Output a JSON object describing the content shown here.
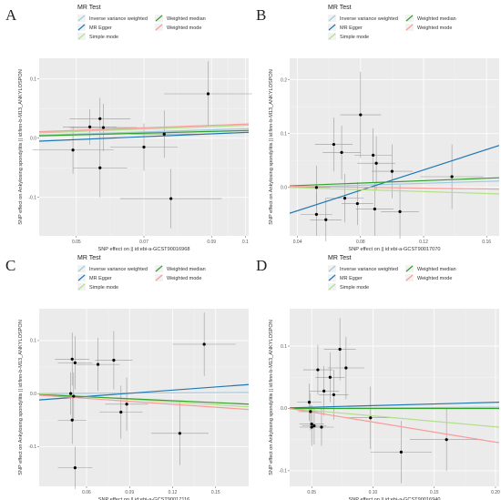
{
  "legend": {
    "title": "MR Test",
    "methods": [
      {
        "label": "Inverse variance weighted",
        "color": "#9ecae1"
      },
      {
        "label": "MR Egger",
        "color": "#1f78b4"
      },
      {
        "label": "Simple mode",
        "color": "#b2df8a"
      },
      {
        "label": "Weighted median",
        "color": "#33a02c"
      },
      {
        "label": "Weighted mode",
        "color": "#fb9a99"
      }
    ]
  },
  "chart_data": [
    {
      "type": "scatter",
      "panel": "A",
      "xlabel": "SNP effect on  || id:ebi-a-GCST90016968",
      "ylabel": "SNP effect on Ankylosing spondylitis || id:finn-b-M13_ANKYLOSPON",
      "xlim": [
        0.039,
        0.101
      ],
      "ylim": [
        -0.165,
        0.135
      ],
      "xticks": [
        0.05,
        0.07,
        0.09,
        0.1
      ],
      "xtick_labels": [
        "0.05",
        "0.07",
        "0.09",
        "0.1"
      ],
      "yticks": [
        -0.1,
        0.0,
        0.1
      ],
      "ytick_labels": [
        "-0.1",
        "0.0",
        "0.1"
      ],
      "points": [
        {
          "x": 0.049,
          "y": -0.02,
          "xerr": 0.012,
          "yerr": 0.04
        },
        {
          "x": 0.054,
          "y": 0.019,
          "xerr": 0.008,
          "yerr": 0.03
        },
        {
          "x": 0.057,
          "y": 0.033,
          "xerr": 0.009,
          "yerr": 0.035
        },
        {
          "x": 0.058,
          "y": 0.018,
          "xerr": 0.01,
          "yerr": 0.04
        },
        {
          "x": 0.057,
          "y": -0.05,
          "xerr": 0.008,
          "yerr": 0.05
        },
        {
          "x": 0.07,
          "y": -0.015,
          "xerr": 0.01,
          "yerr": 0.04
        },
        {
          "x": 0.076,
          "y": 0.007,
          "xerr": 0.01,
          "yerr": 0.04
        },
        {
          "x": 0.078,
          "y": -0.102,
          "xerr": 0.015,
          "yerr": 0.05
        },
        {
          "x": 0.089,
          "y": 0.075,
          "xerr": 0.013,
          "yerr": 0.055
        }
      ],
      "lines": [
        {
          "method": "Inverse variance weighted",
          "y0": 0.005,
          "y1": 0.016
        },
        {
          "method": "MR Egger",
          "y0": -0.005,
          "y1": 0.01
        },
        {
          "method": "Simple mode",
          "y0": 0.009,
          "y1": 0.022
        },
        {
          "method": "Weighted median",
          "y0": 0.004,
          "y1": 0.013
        },
        {
          "method": "Weighted mode",
          "y0": 0.011,
          "y1": 0.024
        }
      ]
    },
    {
      "type": "scatter",
      "panel": "B",
      "xlabel": "SNP effect on  || id:ebi-a-GCST90017070",
      "ylabel": "SNP effect on Ankylosing spondylitis || id:finn-b-M13_ANKYLOSPON",
      "xlim": [
        0.035,
        0.168
      ],
      "ylim": [
        -0.09,
        0.24
      ],
      "xticks": [
        0.04,
        0.08,
        0.12,
        0.16
      ],
      "xtick_labels": [
        "0.04",
        "0.08",
        "0.12",
        "0.16"
      ],
      "yticks": [
        0.0,
        0.1,
        0.2
      ],
      "ytick_labels": [
        "0.0",
        "0.1",
        "0.2"
      ],
      "points": [
        {
          "x": 0.052,
          "y": 0.0,
          "xerr": 0.009,
          "yerr": 0.04
        },
        {
          "x": 0.052,
          "y": -0.05,
          "xerr": 0.01,
          "yerr": 0.04
        },
        {
          "x": 0.058,
          "y": -0.06,
          "xerr": 0.01,
          "yerr": 0.04
        },
        {
          "x": 0.063,
          "y": 0.08,
          "xerr": 0.012,
          "yerr": 0.05
        },
        {
          "x": 0.068,
          "y": 0.065,
          "xerr": 0.012,
          "yerr": 0.05
        },
        {
          "x": 0.07,
          "y": -0.02,
          "xerr": 0.012,
          "yerr": 0.045
        },
        {
          "x": 0.078,
          "y": -0.03,
          "xerr": 0.01,
          "yerr": 0.04
        },
        {
          "x": 0.08,
          "y": 0.135,
          "xerr": 0.013,
          "yerr": 0.08
        },
        {
          "x": 0.088,
          "y": 0.06,
          "xerr": 0.012,
          "yerr": 0.05
        },
        {
          "x": 0.09,
          "y": 0.045,
          "xerr": 0.012,
          "yerr": 0.05
        },
        {
          "x": 0.089,
          "y": -0.04,
          "xerr": 0.012,
          "yerr": 0.05
        },
        {
          "x": 0.1,
          "y": 0.03,
          "xerr": 0.013,
          "yerr": 0.05
        },
        {
          "x": 0.105,
          "y": -0.045,
          "xerr": 0.012,
          "yerr": 0.05
        },
        {
          "x": 0.138,
          "y": 0.02,
          "xerr": 0.02,
          "yerr": 0.06
        }
      ],
      "lines": [
        {
          "method": "Inverse variance weighted",
          "y0": 0.0,
          "y1": 0.012
        },
        {
          "method": "MR Egger",
          "y0": -0.048,
          "y1": 0.078
        },
        {
          "method": "Simple mode",
          "y0": 0.0,
          "y1": -0.012
        },
        {
          "method": "Weighted median",
          "y0": 0.003,
          "y1": 0.018
        },
        {
          "method": "Weighted mode",
          "y0": 0.002,
          "y1": -0.003
        }
      ]
    },
    {
      "type": "scatter",
      "panel": "C",
      "xlabel": "SNP effect on  || id:ebi-a-GCST90017116",
      "ylabel": "SNP effect on Ankylosing spondylitis || id:finn-b-M13_ANKYLOSPON",
      "xlim": [
        0.027,
        0.173
      ],
      "ylim": [
        -0.175,
        0.16
      ],
      "xticks": [
        0.06,
        0.09,
        0.12,
        0.15
      ],
      "xtick_labels": [
        "0.06",
        "0.09",
        "0.12",
        "0.15"
      ],
      "yticks": [
        -0.1,
        0.0,
        0.1
      ],
      "ytick_labels": [
        "-0.1",
        "0.0",
        "0.1"
      ],
      "points": [
        {
          "x": 0.05,
          "y": 0.065,
          "xerr": 0.012,
          "yerr": 0.05
        },
        {
          "x": 0.052,
          "y": 0.058,
          "xerr": 0.012,
          "yerr": 0.05
        },
        {
          "x": 0.049,
          "y": 0.0,
          "xerr": 0.012,
          "yerr": 0.04
        },
        {
          "x": 0.051,
          "y": -0.005,
          "xerr": 0.012,
          "yerr": 0.045
        },
        {
          "x": 0.05,
          "y": -0.05,
          "xerr": 0.01,
          "yerr": 0.045
        },
        {
          "x": 0.052,
          "y": -0.14,
          "xerr": 0.012,
          "yerr": 0.04
        },
        {
          "x": 0.068,
          "y": 0.055,
          "xerr": 0.015,
          "yerr": 0.05
        },
        {
          "x": 0.079,
          "y": 0.063,
          "xerr": 0.013,
          "yerr": 0.055
        },
        {
          "x": 0.084,
          "y": -0.035,
          "xerr": 0.015,
          "yerr": 0.05
        },
        {
          "x": 0.088,
          "y": -0.02,
          "xerr": 0.015,
          "yerr": 0.05
        },
        {
          "x": 0.125,
          "y": -0.075,
          "xerr": 0.02,
          "yerr": 0.06
        },
        {
          "x": 0.142,
          "y": 0.093,
          "xerr": 0.022,
          "yerr": 0.06
        }
      ],
      "lines": [
        {
          "method": "Inverse variance weighted",
          "y0": 0.0,
          "y1": 0.002
        },
        {
          "method": "MR Egger",
          "y0": -0.012,
          "y1": 0.017
        },
        {
          "method": "Simple mode",
          "y0": 0.0,
          "y1": -0.025
        },
        {
          "method": "Weighted median",
          "y0": -0.002,
          "y1": -0.02
        },
        {
          "method": "Weighted mode",
          "y0": -0.003,
          "y1": -0.03
        }
      ]
    },
    {
      "type": "scatter",
      "panel": "D",
      "xlabel": "SNP effect on  || id:ebi-a-GCST90016940",
      "ylabel": "SNP effect on Ankylosing spondylitis || id:finn-b-M13_ANKYLOSPON",
      "xlim": [
        0.032,
        0.203
      ],
      "ylim": [
        -0.125,
        0.16
      ],
      "xticks": [
        0.05,
        0.1,
        0.15,
        0.2
      ],
      "xtick_labels": [
        "0.05",
        "0.10",
        "0.15",
        "0.20"
      ],
      "yticks": [
        -0.1,
        0.0,
        0.1
      ],
      "ytick_labels": [
        "-0.1",
        "0.0",
        "0.1"
      ],
      "points": [
        {
          "x": 0.048,
          "y": 0.01,
          "xerr": 0.01,
          "yerr": 0.03
        },
        {
          "x": 0.049,
          "y": -0.005,
          "xerr": 0.01,
          "yerr": 0.03
        },
        {
          "x": 0.05,
          "y": -0.025,
          "xerr": 0.01,
          "yerr": 0.03
        },
        {
          "x": 0.05,
          "y": -0.03,
          "xerr": 0.01,
          "yerr": 0.03
        },
        {
          "x": 0.052,
          "y": -0.028,
          "xerr": 0.01,
          "yerr": 0.03
        },
        {
          "x": 0.055,
          "y": 0.062,
          "xerr": 0.012,
          "yerr": 0.04
        },
        {
          "x": 0.058,
          "y": -0.03,
          "xerr": 0.01,
          "yerr": 0.03
        },
        {
          "x": 0.06,
          "y": 0.028,
          "xerr": 0.012,
          "yerr": 0.04
        },
        {
          "x": 0.065,
          "y": 0.05,
          "xerr": 0.012,
          "yerr": 0.04
        },
        {
          "x": 0.068,
          "y": 0.022,
          "xerr": 0.012,
          "yerr": 0.04
        },
        {
          "x": 0.073,
          "y": 0.095,
          "xerr": 0.013,
          "yerr": 0.05
        },
        {
          "x": 0.078,
          "y": 0.065,
          "xerr": 0.015,
          "yerr": 0.05
        },
        {
          "x": 0.098,
          "y": -0.015,
          "xerr": 0.02,
          "yerr": 0.05
        },
        {
          "x": 0.123,
          "y": -0.07,
          "xerr": 0.025,
          "yerr": 0.05
        },
        {
          "x": 0.16,
          "y": -0.05,
          "xerr": 0.03,
          "yerr": 0.05
        }
      ],
      "lines": [
        {
          "method": "Inverse variance weighted",
          "y0": 0.0,
          "y1": 0.002
        },
        {
          "method": "MR Egger",
          "y0": 0.001,
          "y1": 0.01
        },
        {
          "method": "Simple mode",
          "y0": 0.0,
          "y1": -0.03
        },
        {
          "method": "Weighted median",
          "y0": 0.0,
          "y1": 0.0
        },
        {
          "method": "Weighted mode",
          "y0": 0.0,
          "y1": -0.055
        }
      ]
    }
  ]
}
